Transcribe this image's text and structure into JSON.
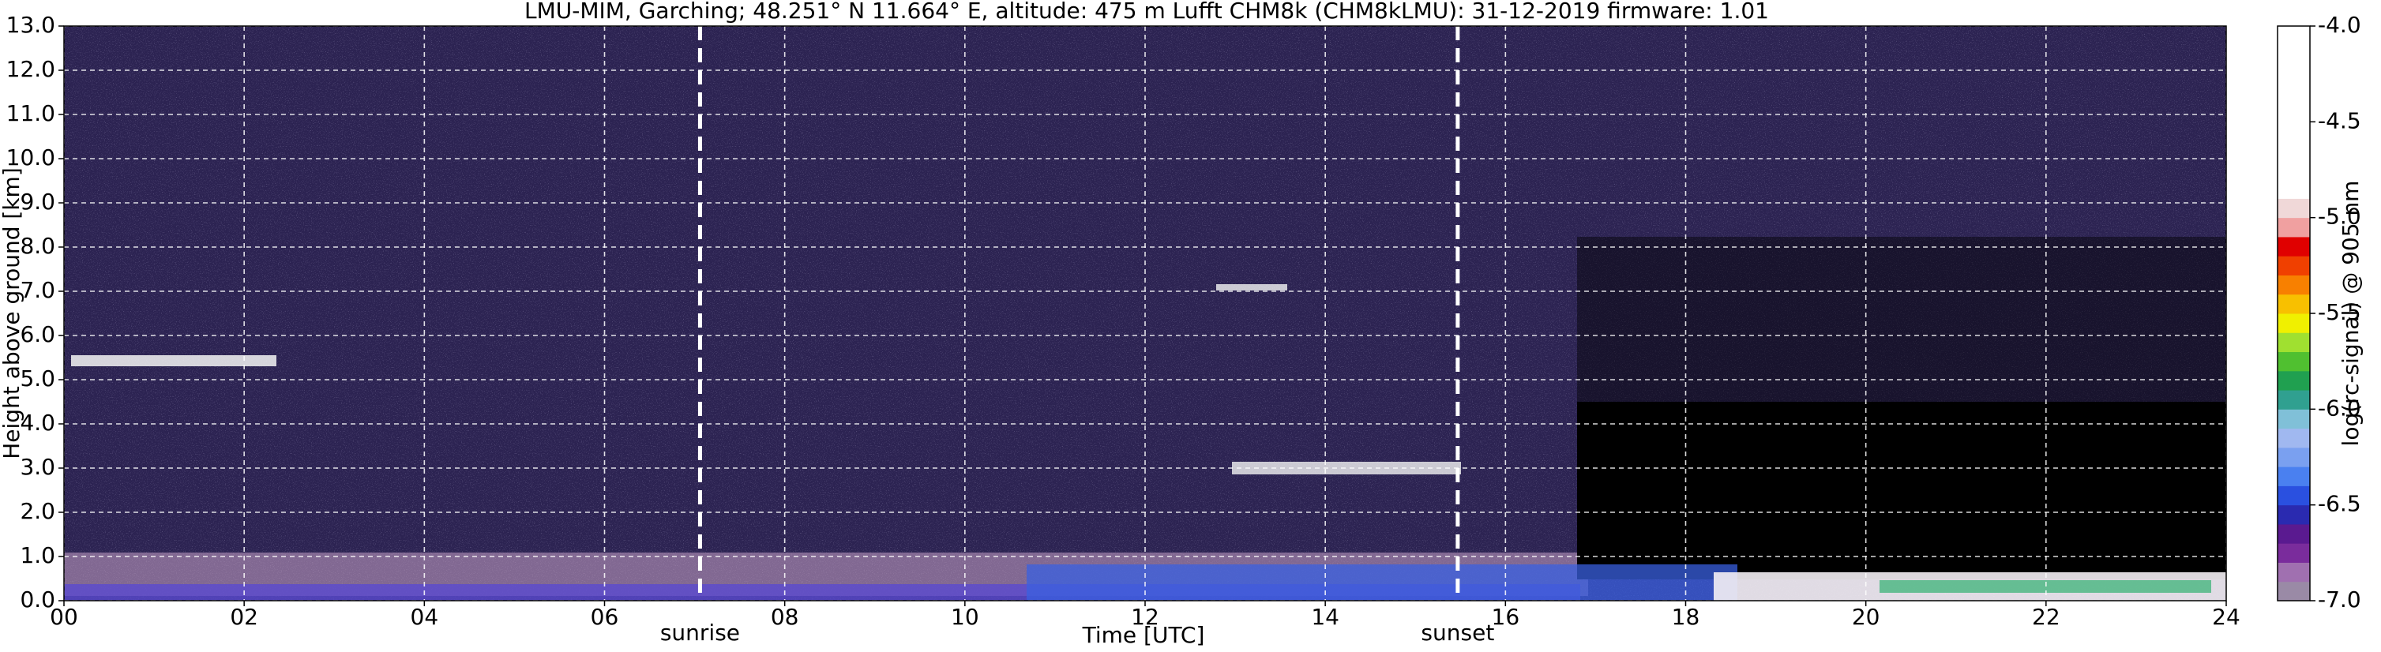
{
  "chart_data": {
    "type": "heatmap",
    "title": "LMU-MIM, Garching; 48.251° N 11.664° E, altitude: 475 m    Lufft CHM8k (CHM8kLMU): 31-12-2019    firmware: 1.01",
    "x_label": "Time [UTC]",
    "y_label": "Height above ground [km]",
    "colorbar_label": "log(rc-signal) @ 905 nm",
    "xlim": [
      0,
      24
    ],
    "xticks": [
      {
        "value": 0,
        "label": "00"
      },
      {
        "value": 2,
        "label": "02"
      },
      {
        "value": 4,
        "label": "04"
      },
      {
        "value": 6,
        "label": "06"
      },
      {
        "value": 8,
        "label": "08"
      },
      {
        "value": 10,
        "label": "10"
      },
      {
        "value": 12,
        "label": "12"
      },
      {
        "value": 14,
        "label": "14"
      },
      {
        "value": 16,
        "label": "16"
      },
      {
        "value": 18,
        "label": "18"
      },
      {
        "value": 20,
        "label": "20"
      },
      {
        "value": 22,
        "label": "22"
      },
      {
        "value": 24,
        "label": "24"
      }
    ],
    "ylim": [
      0,
      13
    ],
    "yticks": [
      {
        "value": 0,
        "label": "0.0"
      },
      {
        "value": 1,
        "label": "1.0"
      },
      {
        "value": 2,
        "label": "2.0"
      },
      {
        "value": 3,
        "label": "3.0"
      },
      {
        "value": 4,
        "label": "4.0"
      },
      {
        "value": 5,
        "label": "5.0"
      },
      {
        "value": 6,
        "label": "6.0"
      },
      {
        "value": 7,
        "label": "7.0"
      },
      {
        "value": 8,
        "label": "8.0"
      },
      {
        "value": 9,
        "label": "9.0"
      },
      {
        "value": 10,
        "label": "10.0"
      },
      {
        "value": 11,
        "label": "11.0"
      },
      {
        "value": 12,
        "label": "12.0"
      },
      {
        "value": 13,
        "label": "13.0"
      }
    ],
    "clim": [
      -7,
      -4
    ],
    "cticks": [
      {
        "value": -4,
        "label": "-4.0"
      },
      {
        "value": -4.5,
        "label": "-4.5"
      },
      {
        "value": -5,
        "label": "-5.0"
      },
      {
        "value": -5.5,
        "label": "-5.5"
      },
      {
        "value": -6,
        "label": "-6.0"
      },
      {
        "value": -6.5,
        "label": "-6.5"
      },
      {
        "value": -7,
        "label": "-7.0"
      }
    ],
    "colormap": [
      "#9a8aa6",
      "#a070b0",
      "#7a2c9c",
      "#5a1a90",
      "#2a2ab0",
      "#2a50e0",
      "#4a80f0",
      "#7aa0f0",
      "#a0b8f0",
      "#80c0d8",
      "#30a090",
      "#20a050",
      "#50c030",
      "#a0e030",
      "#f0f000",
      "#f8c000",
      "#f88000",
      "#f04000",
      "#e00000",
      "#f0a0a0",
      "#f0d8d8",
      "#ffffff",
      "#ffffff",
      "#ffffff",
      "#ffffff",
      "#ffffff",
      "#ffffff",
      "#ffffff",
      "#ffffff",
      "#ffffff"
    ],
    "grid": true,
    "events": [
      {
        "label": "sunrise",
        "x": 7.06
      },
      {
        "label": "sunset",
        "x": 15.47
      }
    ]
  }
}
